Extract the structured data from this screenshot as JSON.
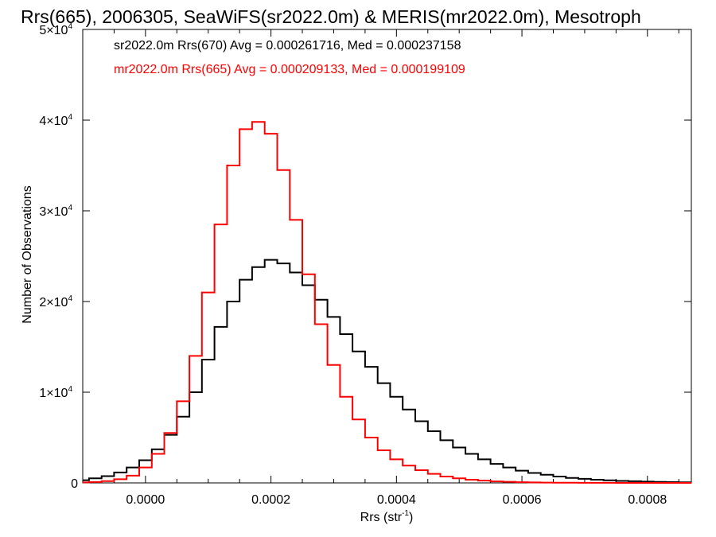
{
  "chart_data": {
    "type": "line",
    "title": "Rrs(665), 2006305, SeaWiFS(sr2022.0m) & MERIS(mr2022.0m), Mesotroph",
    "xlabel": "Rrs (str",
    "xlabel_sup": "-1",
    "xlabel_end": ")",
    "ylabel": "Number of Observations",
    "xlim": [
      -0.0001,
      0.00087
    ],
    "ylim": [
      0,
      50000
    ],
    "x_ticks": [
      {
        "value": 0.0,
        "label": "0.0000"
      },
      {
        "value": 0.0002,
        "label": "0.0002"
      },
      {
        "value": 0.0004,
        "label": "0.0004"
      },
      {
        "value": 0.0006,
        "label": "0.0006"
      },
      {
        "value": 0.0008,
        "label": "0.0008"
      }
    ],
    "y_ticks": [
      {
        "value": 0,
        "label": "0",
        "exp": ""
      },
      {
        "value": 10000,
        "label": "1×10",
        "exp": "4"
      },
      {
        "value": 20000,
        "label": "2×10",
        "exp": "4"
      },
      {
        "value": 30000,
        "label": "3×10",
        "exp": "4"
      },
      {
        "value": 40000,
        "label": "4×10",
        "exp": "4"
      },
      {
        "value": 50000,
        "label": "5×10",
        "exp": "4"
      }
    ],
    "legend": [
      {
        "text": "sr2022.0m Rrs(670) Avg = 0.000261716, Med = 0.000237158",
        "color": "#000000"
      },
      {
        "text": "mr2022.0m Rrs(665) Avg = 0.000209133, Med = 0.000199109",
        "color": "#ff0000"
      }
    ],
    "legend_position": "top-left",
    "series": [
      {
        "color": "#000000",
        "x": [
          -0.0001,
          -8e-05,
          -6e-05,
          -4e-05,
          -2e-05,
          0.0,
          2e-05,
          4e-05,
          6e-05,
          8e-05,
          0.0001,
          0.00012,
          0.00014,
          0.00016,
          0.00018,
          0.0002,
          0.00022,
          0.00024,
          0.00026,
          0.00028,
          0.0003,
          0.00032,
          0.00034,
          0.00036,
          0.00038,
          0.0004,
          0.00042,
          0.00044,
          0.00046,
          0.00048,
          0.0005,
          0.00052,
          0.00054,
          0.00056,
          0.00058,
          0.0006,
          0.00062,
          0.00064,
          0.00066,
          0.00068,
          0.0007,
          0.00072,
          0.00074,
          0.00076,
          0.00078,
          0.0008,
          0.00082,
          0.00084,
          0.00086
        ],
        "y": [
          300,
          500,
          750,
          1150,
          1700,
          2500,
          3700,
          5300,
          7300,
          10000,
          13600,
          17200,
          20000,
          22400,
          23800,
          24600,
          24200,
          23200,
          21800,
          20200,
          18300,
          16400,
          14500,
          12800,
          11000,
          9500,
          8100,
          6800,
          5700,
          4700,
          3900,
          3200,
          2600,
          2100,
          1700,
          1350,
          1100,
          900,
          700,
          550,
          450,
          350,
          280,
          220,
          180,
          140,
          110,
          90,
          70
        ]
      },
      {
        "color": "#ff0000",
        "x": [
          -0.0001,
          -8e-05,
          -6e-05,
          -4e-05,
          -2e-05,
          0.0,
          2e-05,
          4e-05,
          6e-05,
          8e-05,
          0.0001,
          0.00012,
          0.00014,
          0.00016,
          0.00018,
          0.0002,
          0.00022,
          0.00024,
          0.00026,
          0.00028,
          0.0003,
          0.00032,
          0.00034,
          0.00036,
          0.00038,
          0.0004,
          0.00042,
          0.00044,
          0.00046,
          0.00048,
          0.0005,
          0.00052,
          0.00054,
          0.00056,
          0.00058,
          0.0006,
          0.00062,
          0.00064,
          0.00066,
          0.00068,
          0.0007,
          0.00072,
          0.00074,
          0.00076,
          0.00078,
          0.0008,
          0.00082,
          0.00084,
          0.00086
        ],
        "y": [
          50,
          100,
          200,
          400,
          800,
          1700,
          3200,
          5500,
          9000,
          14000,
          21000,
          28500,
          35000,
          39000,
          39800,
          38500,
          34500,
          29000,
          23000,
          17500,
          13000,
          9500,
          7000,
          5000,
          3600,
          2600,
          1900,
          1400,
          1000,
          700,
          500,
          350,
          250,
          170,
          120,
          80,
          55,
          35,
          25,
          15,
          10,
          8,
          5,
          3,
          2,
          1,
          0,
          0,
          0
        ]
      }
    ]
  }
}
